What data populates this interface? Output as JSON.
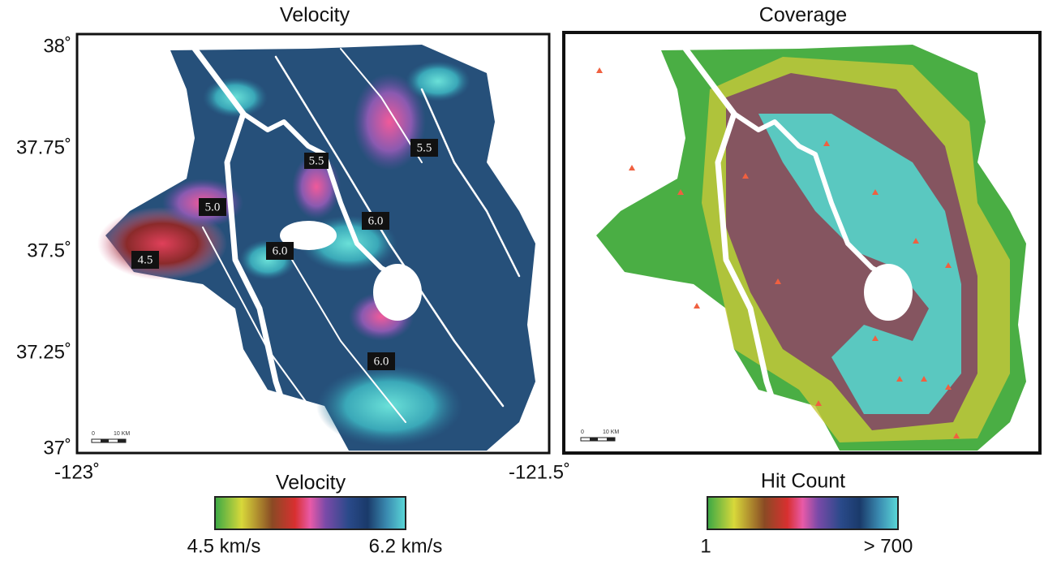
{
  "panels": [
    {
      "title": "Velocity",
      "contour_labels": [
        "4.5",
        "5.0",
        "5.5",
        "6.0",
        "6.0",
        "5.5",
        "6.0"
      ],
      "scale_bar": {
        "start": "0",
        "end": "10 KM"
      }
    },
    {
      "title": "Coverage",
      "scale_bar": {
        "start": "0",
        "end": "10 KM"
      }
    }
  ],
  "axes": {
    "y_ticks": [
      "38˚",
      "37.75˚",
      "37.5˚",
      "37.25˚",
      "37˚"
    ],
    "x_ticks": [
      "-123˚",
      "-121.5˚"
    ]
  },
  "colorbars": [
    {
      "title": "Velocity",
      "min_label": "4.5 km/s",
      "max_label": "6.2 km/s"
    },
    {
      "title": "Hit Count",
      "min_label": "1",
      "max_label": "> 700"
    }
  ]
}
